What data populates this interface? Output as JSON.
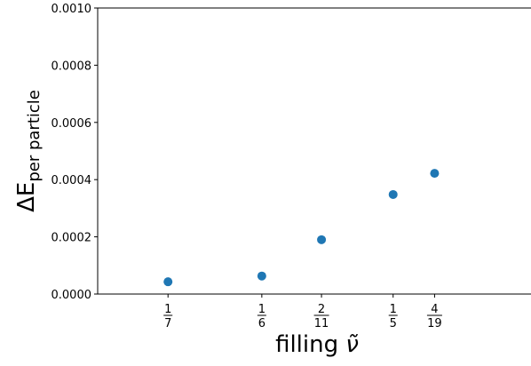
{
  "chart_data": {
    "type": "scatter",
    "title": "",
    "xlabel_text": "filling ",
    "xlabel_symbol": "ν̃",
    "ylabel_main": "ΔE",
    "ylabel_sub": "per particle",
    "ylim": [
      0,
      0.001
    ],
    "xlim": [
      0.125,
      0.235
    ],
    "y_ticks": [
      0.0,
      0.0002,
      0.0004,
      0.0006,
      0.0008,
      0.001
    ],
    "y_tick_labels": [
      "0.0000",
      "0.0002",
      "0.0004",
      "0.0006",
      "0.0008",
      "0.0010"
    ],
    "x_ticks": [
      {
        "value": 0.142857,
        "num": "1",
        "den": "7"
      },
      {
        "value": 0.166667,
        "num": "1",
        "den": "6"
      },
      {
        "value": 0.181818,
        "num": "2",
        "den": "11"
      },
      {
        "value": 0.2,
        "num": "1",
        "den": "5"
      },
      {
        "value": 0.210526,
        "num": "4",
        "den": "19"
      }
    ],
    "points": [
      {
        "x": 0.142857,
        "y": 4.3e-05
      },
      {
        "x": 0.166667,
        "y": 6.3e-05
      },
      {
        "x": 0.181818,
        "y": 0.00019
      },
      {
        "x": 0.2,
        "y": 0.000348
      },
      {
        "x": 0.210526,
        "y": 0.000422
      }
    ],
    "marker_color": "#1f77b4",
    "grid": false,
    "legend": "none"
  }
}
